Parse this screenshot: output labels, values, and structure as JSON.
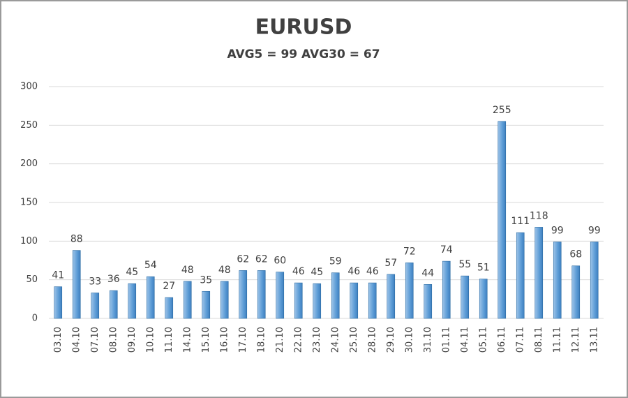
{
  "chart_data": {
    "type": "bar",
    "title": "EURUSD",
    "subtitle": "AVG5 = 99 AVG30 = 67",
    "categories": [
      "03.10",
      "04.10",
      "07.10",
      "08.10",
      "09.10",
      "10.10",
      "11.10",
      "14.10",
      "15.10",
      "16.10",
      "17.10",
      "18.10",
      "21.10",
      "22.10",
      "23.10",
      "24.10",
      "25.10",
      "28.10",
      "29.10",
      "30.10",
      "31.10",
      "01.11",
      "04.11",
      "05.11",
      "06.11",
      "07.11",
      "08.11",
      "11.11",
      "12.11",
      "13.11"
    ],
    "values": [
      41,
      88,
      33,
      36,
      45,
      54,
      27,
      48,
      35,
      48,
      62,
      62,
      60,
      46,
      45,
      59,
      46,
      46,
      57,
      72,
      44,
      74,
      55,
      51,
      255,
      111,
      118,
      99,
      68,
      99
    ],
    "color": "#5b9bd5",
    "ylim": [
      0,
      300
    ],
    "yticks": [
      0,
      50,
      100,
      150,
      200,
      250,
      300
    ],
    "grid": true
  }
}
